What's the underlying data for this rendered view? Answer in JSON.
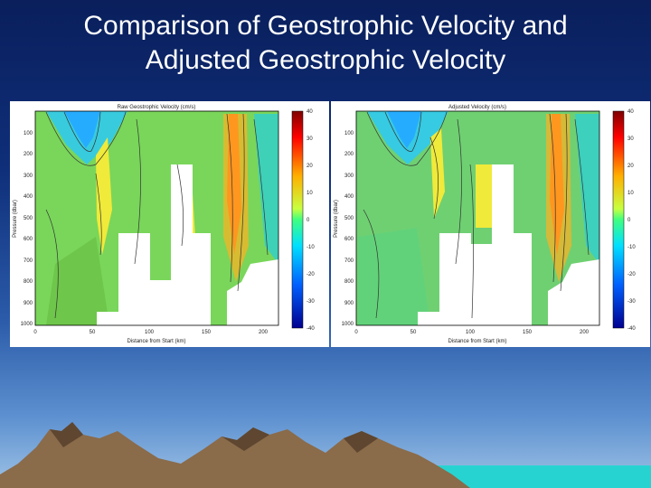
{
  "slide": {
    "title_line1": "Comparison of Geostrophic Velocity and",
    "title_line2": "Adjusted Geostrophic Velocity"
  },
  "panels": [
    {
      "id": "left",
      "plot_title": "Raw Geostrophic Velocity (cm/s)",
      "xlabel": "Distance from Start (km)",
      "ylabel": "Pressure (dbar)",
      "xticks": [
        "0",
        "50",
        "100",
        "150",
        "200"
      ],
      "yticks": [
        "100",
        "200",
        "300",
        "400",
        "500",
        "600",
        "700",
        "800",
        "900",
        "1000"
      ],
      "colorbar_ticks": [
        "40",
        "30",
        "20",
        "10",
        "0",
        "-10",
        "-20",
        "-30",
        "-40"
      ]
    },
    {
      "id": "right",
      "plot_title": "Adjusted Velocity (cm/s)",
      "xlabel": "Distance from Start (km)",
      "ylabel": "Pressure (dbar)",
      "xticks": [
        "0",
        "50",
        "100",
        "150",
        "200"
      ],
      "yticks": [
        "100",
        "200",
        "300",
        "400",
        "500",
        "600",
        "700",
        "800",
        "900",
        "1000"
      ],
      "colorbar_ticks": [
        "40",
        "30",
        "20",
        "10",
        "0",
        "-10",
        "-20",
        "-30",
        "-40"
      ]
    }
  ],
  "colors": {
    "background_top": "#0a1f5c",
    "background_bottom": "#9fc3e6",
    "title": "#ffffff",
    "mountain": "#8a6b4a",
    "water": "#27d3d1"
  }
}
